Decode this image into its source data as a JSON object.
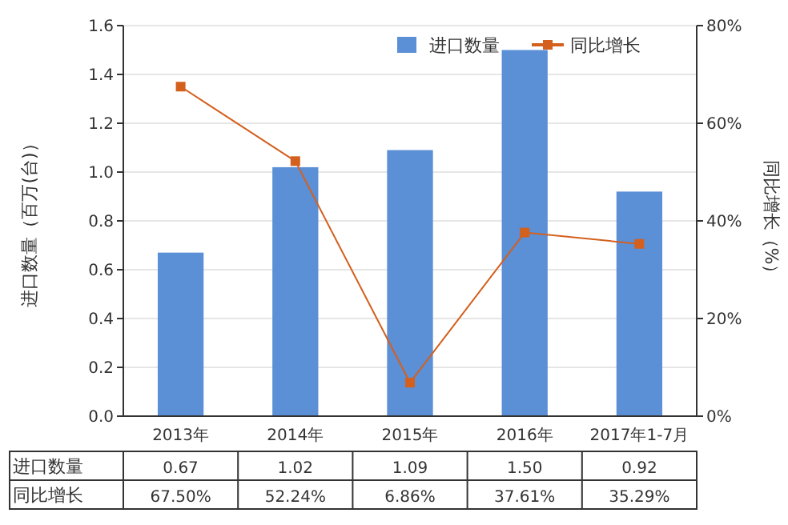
{
  "chart_data": {
    "type": "bar",
    "categories": [
      "2013年",
      "2014年",
      "2015年",
      "2016年",
      "2017年1-7月"
    ],
    "series": [
      {
        "name": "进口数量",
        "color": "#5b8fd6",
        "values": [
          0.67,
          1.02,
          1.09,
          1.5,
          0.92
        ],
        "value_labels": [
          "0.67",
          "1.02",
          "1.09",
          "1.50",
          "0.92"
        ]
      },
      {
        "name": "同比增长",
        "type": "line",
        "axis": "y2",
        "color": "#d4601e",
        "marker": "square",
        "values": [
          67.5,
          52.24,
          6.86,
          37.61,
          35.29
        ],
        "value_labels": [
          "67.50%",
          "52.24%",
          "6.86%",
          "37.61%",
          "35.29%"
        ]
      }
    ],
    "ylabel": "进口数量（百万(台)）",
    "y2label": "同比增长（%）",
    "ylim": [
      0,
      1.6
    ],
    "yticks": [
      "0.0",
      "0.2",
      "0.4",
      "0.6",
      "0.8",
      "1.0",
      "1.2",
      "1.4",
      "1.6"
    ],
    "y2lim": [
      0,
      80
    ],
    "y2ticks": [
      {
        "value": 0,
        "label": "0%"
      },
      {
        "value": 20,
        "label": "20%"
      },
      {
        "value": 40,
        "label": "40%"
      },
      {
        "value": 60,
        "label": "60%"
      },
      {
        "value": 80,
        "label": "80%"
      }
    ],
    "grid": "y",
    "legend": "top right"
  }
}
